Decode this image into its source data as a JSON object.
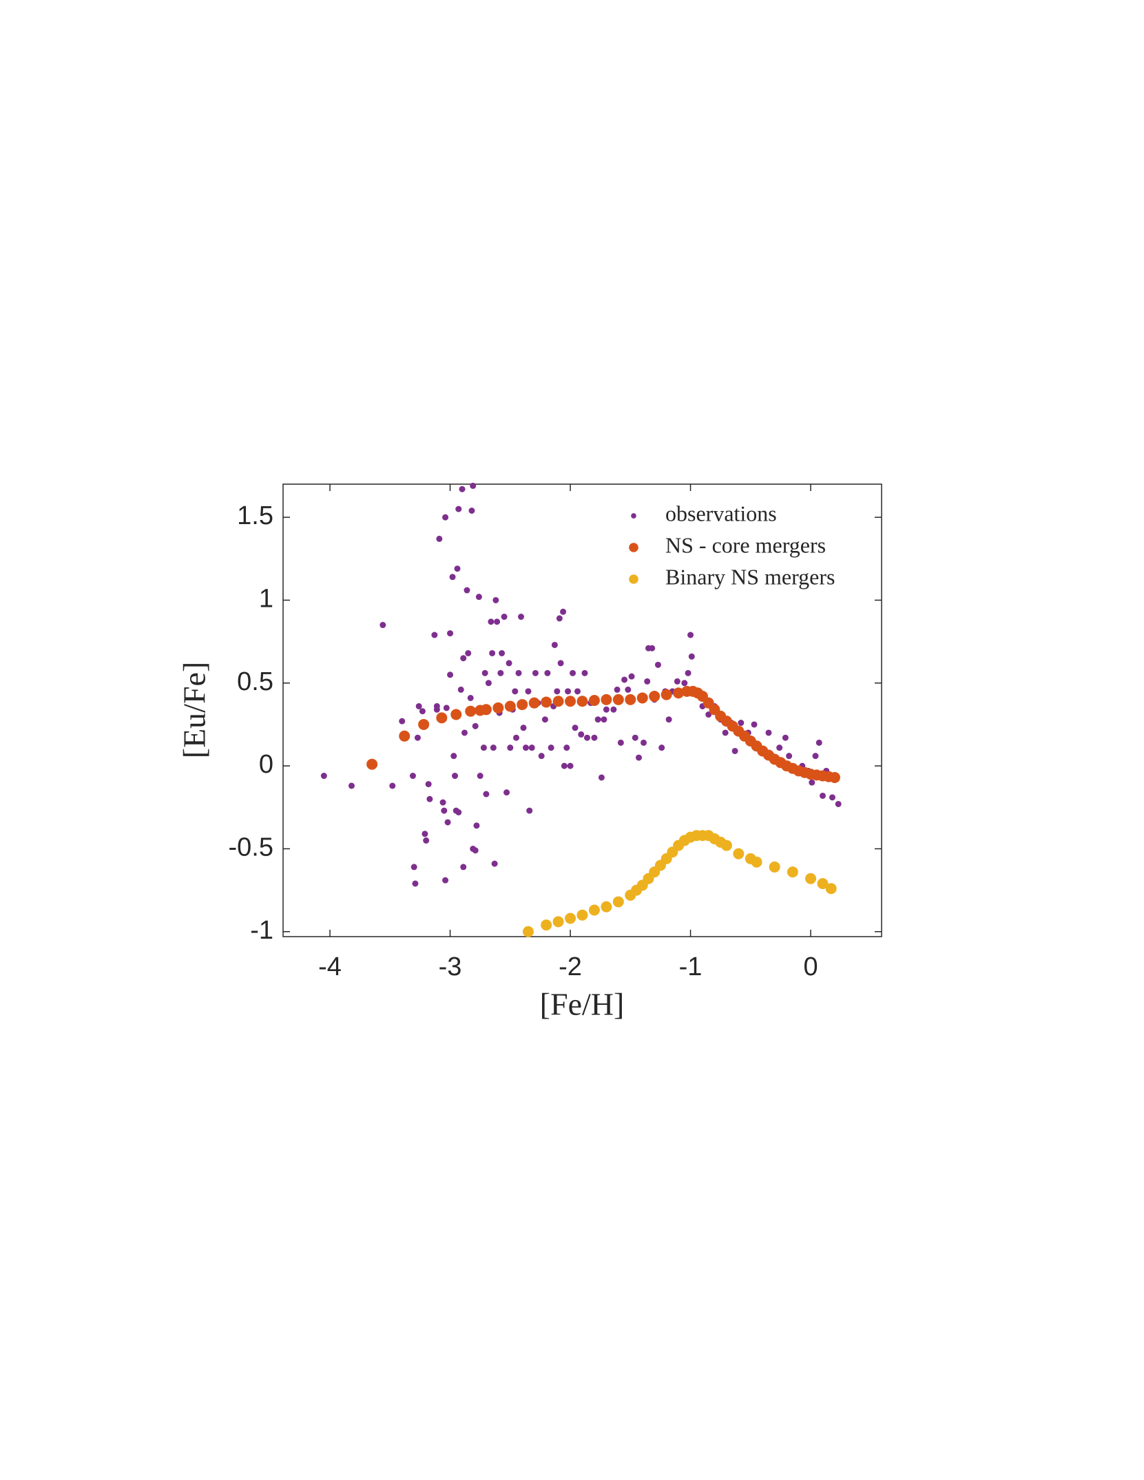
{
  "chart_data": {
    "type": "scatter",
    "xlabel": "[Fe/H]",
    "ylabel": "[Eu/Fe]",
    "xlim": [
      -4.39,
      0.59
    ],
    "ylim": [
      -1.03,
      1.7
    ],
    "xticks": [
      -4,
      -3,
      -2,
      -1,
      0
    ],
    "yticks": [
      -1,
      -0.5,
      0,
      0.5,
      1,
      1.5
    ],
    "legend": "upper right",
    "box": true,
    "series": [
      {
        "name": "observations",
        "color": "#7E2F8E",
        "size": "small",
        "x": [
          -4.05,
          -3.82,
          -3.56,
          -3.48,
          -3.4,
          -3.31,
          -3.3,
          -3.29,
          -3.27,
          -3.26,
          -3.23,
          -3.21,
          -3.2,
          -3.18,
          -3.17,
          -3.13,
          -3.11,
          -3.11,
          -3.09,
          -3.06,
          -3.05,
          -3.04,
          -3.04,
          -3.03,
          -3.02,
          -3.0,
          -3.0,
          -2.98,
          -2.97,
          -2.96,
          -2.95,
          -2.94,
          -2.93,
          -2.93,
          -2.91,
          -2.9,
          -2.89,
          -2.89,
          -2.88,
          -2.86,
          -2.85,
          -2.83,
          -2.82,
          -2.81,
          -2.81,
          -2.79,
          -2.79,
          -2.78,
          -2.76,
          -2.75,
          -2.74,
          -2.72,
          -2.71,
          -2.7,
          -2.68,
          -2.66,
          -2.65,
          -2.64,
          -2.63,
          -2.62,
          -2.61,
          -2.59,
          -2.58,
          -2.57,
          -2.55,
          -2.53,
          -2.51,
          -2.5,
          -2.48,
          -2.46,
          -2.45,
          -2.43,
          -2.41,
          -2.39,
          -2.37,
          -2.35,
          -2.34,
          -2.32,
          -2.29,
          -2.27,
          -2.24,
          -2.21,
          -2.19,
          -2.16,
          -2.14,
          -2.13,
          -2.11,
          -2.09,
          -2.08,
          -2.06,
          -2.05,
          -2.03,
          -2.02,
          -2.0,
          -1.98,
          -1.96,
          -1.94,
          -1.91,
          -1.88,
          -1.86,
          -1.83,
          -1.8,
          -1.77,
          -1.74,
          -1.72,
          -1.7,
          -1.64,
          -1.61,
          -1.58,
          -1.55,
          -1.52,
          -1.49,
          -1.46,
          -1.43,
          -1.39,
          -1.36,
          -1.35,
          -1.32,
          -1.3,
          -1.27,
          -1.24,
          -1.21,
          -1.18,
          -1.15,
          -1.11,
          -1.09,
          -1.05,
          -1.02,
          -1.0,
          -0.99,
          -0.95,
          -0.9,
          -0.85,
          -0.8,
          -0.75,
          -0.71,
          -0.66,
          -0.63,
          -0.58,
          -0.52,
          -0.47,
          -0.43,
          -0.35,
          -0.32,
          -0.26,
          -0.21,
          -0.18,
          -0.13,
          -0.07,
          -0.02,
          0.01,
          0.04,
          0.07,
          0.1,
          0.13,
          0.18,
          0.23
        ],
        "values": [
          -0.06,
          -0.12,
          0.85,
          -0.12,
          0.27,
          -0.06,
          -0.61,
          -0.71,
          0.17,
          0.36,
          0.33,
          -0.41,
          -0.45,
          -0.11,
          -0.2,
          0.79,
          0.34,
          0.36,
          1.37,
          -0.22,
          -0.27,
          1.5,
          -0.69,
          0.35,
          -0.34,
          0.8,
          0.55,
          1.14,
          0.06,
          -0.06,
          -0.27,
          1.19,
          1.55,
          -0.28,
          0.46,
          1.67,
          -0.61,
          0.65,
          0.2,
          1.06,
          0.68,
          0.41,
          1.54,
          1.69,
          -0.5,
          0.24,
          -0.51,
          -0.36,
          1.02,
          -0.06,
          0.34,
          0.11,
          0.56,
          -0.17,
          0.5,
          0.87,
          0.68,
          0.11,
          -0.59,
          1.0,
          0.87,
          0.32,
          0.56,
          0.68,
          0.9,
          -0.16,
          0.62,
          0.11,
          0.34,
          0.45,
          0.17,
          0.56,
          0.9,
          0.23,
          0.11,
          0.45,
          -0.27,
          0.11,
          0.56,
          0.38,
          0.06,
          0.28,
          0.56,
          0.11,
          0.36,
          0.73,
          0.45,
          0.89,
          0.62,
          0.93,
          0.0,
          0.11,
          0.45,
          0.0,
          0.56,
          0.23,
          0.45,
          0.19,
          0.56,
          0.17,
          0.38,
          0.17,
          0.28,
          -0.07,
          0.28,
          0.34,
          0.34,
          0.46,
          0.14,
          0.52,
          0.46,
          0.54,
          0.17,
          0.05,
          0.14,
          0.51,
          0.71,
          0.71,
          0.4,
          0.61,
          0.11,
          0.45,
          0.28,
          0.45,
          0.51,
          0.45,
          0.5,
          0.56,
          0.79,
          0.66,
          0.43,
          0.36,
          0.31,
          0.36,
          0.28,
          0.2,
          0.26,
          0.09,
          0.26,
          0.2,
          0.25,
          0.11,
          0.2,
          0.06,
          0.11,
          0.17,
          0.06,
          -0.03,
          0.0,
          -0.03,
          -0.1,
          0.06,
          0.14,
          -0.18,
          -0.03,
          -0.19,
          -0.23
        ]
      },
      {
        "name": "NS - core mergers",
        "color": "#D95319",
        "size": "large",
        "x": [
          -3.65,
          -3.38,
          -3.22,
          -3.07,
          -2.95,
          -2.83,
          -2.75,
          -2.7,
          -2.6,
          -2.5,
          -2.4,
          -2.3,
          -2.2,
          -2.1,
          -2.0,
          -1.9,
          -1.8,
          -1.7,
          -1.6,
          -1.5,
          -1.4,
          -1.3,
          -1.2,
          -1.1,
          -1.03,
          -0.98,
          -0.94,
          -0.9,
          -0.85,
          -0.8,
          -0.75,
          -0.7,
          -0.65,
          -0.6,
          -0.55,
          -0.5,
          -0.45,
          -0.4,
          -0.35,
          -0.3,
          -0.25,
          -0.2,
          -0.15,
          -0.1,
          -0.05,
          0.0,
          0.05,
          0.1,
          0.15,
          0.2
        ],
        "values": [
          0.01,
          0.18,
          0.25,
          0.29,
          0.31,
          0.33,
          0.335,
          0.34,
          0.35,
          0.36,
          0.37,
          0.38,
          0.385,
          0.39,
          0.39,
          0.39,
          0.395,
          0.4,
          0.4,
          0.4,
          0.41,
          0.42,
          0.43,
          0.44,
          0.45,
          0.45,
          0.44,
          0.42,
          0.38,
          0.34,
          0.3,
          0.27,
          0.24,
          0.21,
          0.18,
          0.15,
          0.12,
          0.09,
          0.065,
          0.04,
          0.02,
          0.0,
          -0.015,
          -0.03,
          -0.04,
          -0.05,
          -0.055,
          -0.06,
          -0.065,
          -0.07
        ]
      },
      {
        "name": "Binary NS mergers",
        "color": "#EDB120",
        "size": "large",
        "x": [
          -2.35,
          -2.2,
          -2.1,
          -2.0,
          -1.9,
          -1.8,
          -1.7,
          -1.6,
          -1.5,
          -1.45,
          -1.4,
          -1.35,
          -1.3,
          -1.25,
          -1.2,
          -1.15,
          -1.1,
          -1.05,
          -1.0,
          -0.95,
          -0.9,
          -0.85,
          -0.8,
          -0.75,
          -0.7,
          -0.6,
          -0.5,
          -0.45,
          -0.3,
          -0.15,
          0.0,
          0.1,
          0.17
        ],
        "values": [
          -1.0,
          -0.96,
          -0.94,
          -0.92,
          -0.9,
          -0.87,
          -0.85,
          -0.82,
          -0.78,
          -0.75,
          -0.72,
          -0.68,
          -0.64,
          -0.6,
          -0.56,
          -0.52,
          -0.48,
          -0.45,
          -0.43,
          -0.42,
          -0.42,
          -0.42,
          -0.44,
          -0.46,
          -0.48,
          -0.53,
          -0.56,
          -0.58,
          -0.61,
          -0.64,
          -0.68,
          -0.71,
          -0.74
        ]
      }
    ]
  }
}
